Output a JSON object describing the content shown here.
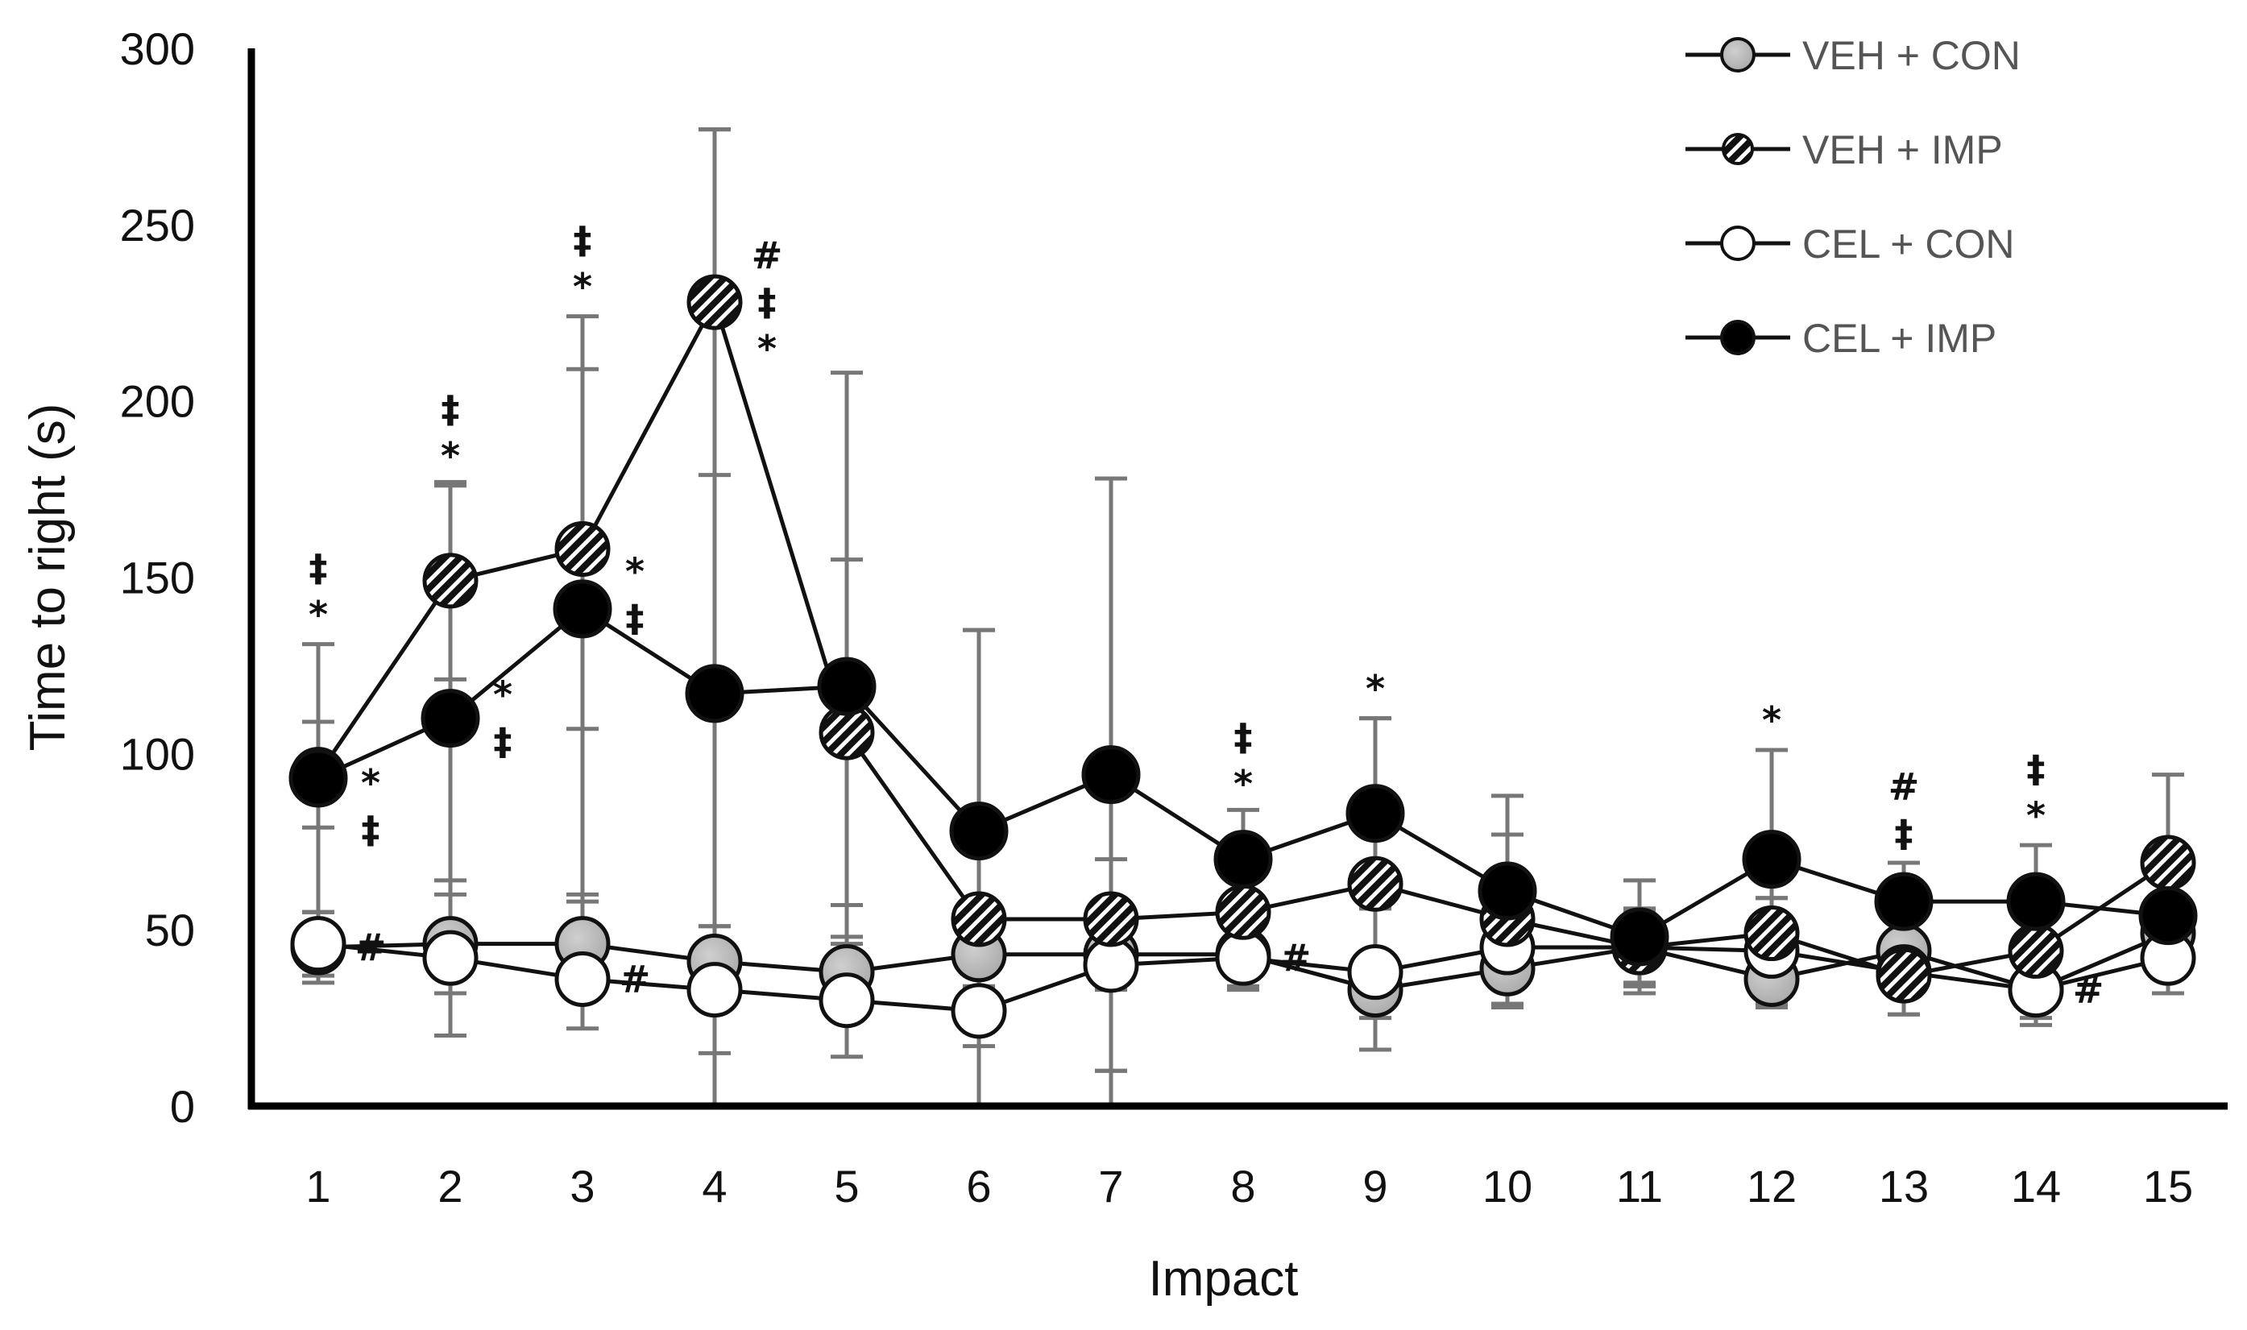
{
  "chart_data": {
    "type": "line",
    "title": "",
    "xlabel": "Impact",
    "ylabel": "Time to right (s)",
    "x": [
      1,
      2,
      3,
      4,
      5,
      6,
      7,
      8,
      9,
      10,
      11,
      12,
      13,
      14,
      15
    ],
    "x_tick_labels": [
      "1",
      "2",
      "3",
      "4",
      "5",
      "6",
      "7",
      "8",
      "9",
      "10",
      "11",
      "12",
      "13",
      "14",
      "15"
    ],
    "ylim": [
      0,
      300
    ],
    "y_ticks": [
      0,
      50,
      100,
      150,
      200,
      250,
      300
    ],
    "y_tick_labels": [
      "0",
      "50",
      "100",
      "150",
      "200",
      "250",
      "300"
    ],
    "grid": false,
    "legend_position": "top-right",
    "series": [
      {
        "name": "VEH + CON",
        "marker": "gray-filled",
        "color": "#b4b4b4",
        "values": [
          45,
          46,
          46,
          41,
          38,
          43,
          43,
          43,
          33,
          39,
          45,
          36,
          44,
          33,
          49
        ],
        "error": [
          10,
          14,
          14,
          10,
          10,
          9,
          10,
          9,
          8,
          10,
          10,
          8,
          9,
          8,
          8
        ]
      },
      {
        "name": "VEH + IMP",
        "marker": "hatched",
        "color": "#111111",
        "values": [
          94,
          149,
          158,
          228,
          106,
          53,
          53,
          55,
          63,
          53,
          45,
          49,
          37,
          44,
          69
        ],
        "error": [
          15,
          28,
          51,
          49,
          49,
          82,
          125,
          13,
          47,
          24,
          11,
          10,
          11,
          12,
          25
        ]
      },
      {
        "name": "CEL + CON",
        "marker": "white-open",
        "color": "#ffffff",
        "values": [
          46,
          42,
          36,
          33,
          30,
          27,
          40,
          42,
          38,
          45,
          45,
          44,
          38,
          33,
          42
        ],
        "error": [
          9,
          22,
          14,
          18,
          16,
          10,
          30,
          9,
          22,
          17,
          11,
          15,
          12,
          10,
          10
        ]
      },
      {
        "name": "CEL + IMP",
        "marker": "black-filled",
        "color": "#000000",
        "values": [
          93,
          110,
          141,
          117,
          119,
          78,
          94,
          70,
          83,
          61,
          48,
          70,
          58,
          58,
          54
        ],
        "error": [
          38,
          66,
          83,
          160,
          89,
          57,
          84,
          14,
          27,
          27,
          16,
          31,
          11,
          16,
          12
        ]
      }
    ],
    "annotations": [
      {
        "label": "‡*",
        "x": 1,
        "y": 133,
        "side": "above"
      },
      {
        "label": "*‡",
        "x": 1,
        "y": 85,
        "side": "right"
      },
      {
        "label": "#",
        "x": 1,
        "y": 45,
        "side": "right"
      },
      {
        "label": "‡*",
        "x": 2,
        "y": 178,
        "side": "above"
      },
      {
        "label": "*‡",
        "x": 2,
        "y": 110,
        "side": "right"
      },
      {
        "label": "‡*",
        "x": 3,
        "y": 226,
        "side": "above"
      },
      {
        "label": "*‡",
        "x": 3,
        "y": 145,
        "side": "right"
      },
      {
        "label": "#",
        "x": 3,
        "y": 36,
        "side": "right"
      },
      {
        "label": "#‡*",
        "x": 4,
        "y": 228,
        "side": "right"
      },
      {
        "label": "‡*",
        "x": 8,
        "y": 85,
        "side": "above"
      },
      {
        "label": "#",
        "x": 8,
        "y": 42,
        "side": "right"
      },
      {
        "label": "*",
        "x": 9,
        "y": 112,
        "side": "above"
      },
      {
        "label": "*",
        "x": 12,
        "y": 103,
        "side": "above"
      },
      {
        "label": "#‡",
        "x": 13,
        "y": 71,
        "side": "above"
      },
      {
        "label": "‡*",
        "x": 14,
        "y": 76,
        "side": "above"
      },
      {
        "label": "#",
        "x": 14,
        "y": 33,
        "side": "right"
      }
    ]
  }
}
